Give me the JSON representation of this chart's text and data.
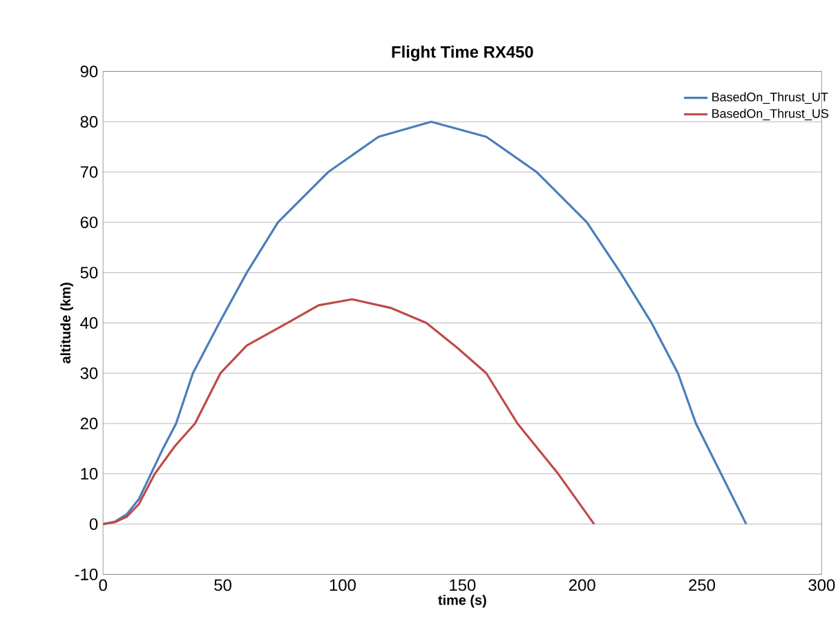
{
  "chart_data": {
    "type": "line",
    "title": "Flight Time RX450",
    "xlabel": "time (s)",
    "ylabel": "altitude (km)",
    "xlim": [
      0,
      300
    ],
    "xticks": [
      0,
      50,
      100,
      150,
      200,
      250,
      300
    ],
    "ylim": [
      -10,
      90
    ],
    "yticks": [
      -10,
      0,
      10,
      20,
      30,
      40,
      50,
      60,
      70,
      80,
      90
    ],
    "grid": "y",
    "legend": "top right",
    "line_style": "solid",
    "series": [
      {
        "name": "BasedOn_Thrust_UT",
        "color": "#4a7ebb",
        "x": [
          0,
          5,
          10,
          15,
          20,
          25,
          30.5,
          37.5,
          48.5,
          60,
          73,
          94,
          115,
          137,
          160,
          181,
          202,
          216,
          229,
          240,
          247.5,
          258,
          268.5
        ],
        "values": [
          0,
          0.5,
          2,
          5,
          10,
          15,
          20,
          30,
          40,
          50,
          60,
          70,
          77,
          80,
          77,
          70,
          60,
          50,
          40,
          30,
          20,
          10,
          0
        ]
      },
      {
        "name": "BasedOn_Thrust_US",
        "color": "#be4b48",
        "x": [
          0,
          5,
          10,
          15,
          21.6,
          30,
          38.4,
          49,
          60,
          77,
          90,
          104,
          120,
          135,
          148,
          160,
          173,
          190,
          205
        ],
        "values": [
          0,
          0.4,
          1.5,
          4,
          10,
          15.5,
          20,
          30,
          35.5,
          40,
          43.5,
          44.7,
          43,
          40,
          35,
          30,
          20,
          10,
          0
        ]
      }
    ]
  }
}
